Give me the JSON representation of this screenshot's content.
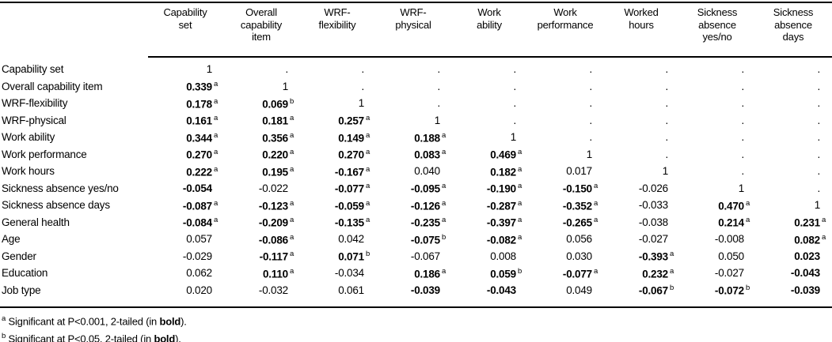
{
  "table": {
    "columns": [
      "Capability\nset",
      "Overall\ncapability\nitem",
      "WRF-\nflexibility",
      "WRF-\nphysical",
      "Work\nability",
      "Work\nperformance",
      "Worked\nhours",
      "Sickness\nabsence\nyes/no",
      "Sickness\nabsence\ndays"
    ],
    "rows": [
      {
        "label": "Capability set",
        "cells": [
          {
            "v": "1"
          },
          {
            "v": "."
          },
          {
            "v": "."
          },
          {
            "v": "."
          },
          {
            "v": "."
          },
          {
            "v": "."
          },
          {
            "v": "."
          },
          {
            "v": "."
          },
          {
            "v": "."
          }
        ]
      },
      {
        "label": "Overall capability item",
        "cells": [
          {
            "v": "0.339",
            "s": "a",
            "b": true
          },
          {
            "v": "1"
          },
          {
            "v": "."
          },
          {
            "v": "."
          },
          {
            "v": "."
          },
          {
            "v": "."
          },
          {
            "v": "."
          },
          {
            "v": "."
          },
          {
            "v": "."
          }
        ]
      },
      {
        "label": "WRF-flexibility",
        "cells": [
          {
            "v": "0.178",
            "s": "a",
            "b": true
          },
          {
            "v": "0.069",
            "s": "b",
            "b": true
          },
          {
            "v": "1"
          },
          {
            "v": "."
          },
          {
            "v": "."
          },
          {
            "v": "."
          },
          {
            "v": "."
          },
          {
            "v": "."
          },
          {
            "v": "."
          }
        ]
      },
      {
        "label": "WRF-physical",
        "cells": [
          {
            "v": "0.161",
            "s": "a",
            "b": true
          },
          {
            "v": "0.181",
            "s": "a",
            "b": true
          },
          {
            "v": "0.257",
            "s": "a",
            "b": true
          },
          {
            "v": "1"
          },
          {
            "v": "."
          },
          {
            "v": "."
          },
          {
            "v": "."
          },
          {
            "v": "."
          },
          {
            "v": "."
          }
        ]
      },
      {
        "label": "Work ability",
        "cells": [
          {
            "v": "0.344",
            "s": "a",
            "b": true
          },
          {
            "v": "0.356",
            "s": "a",
            "b": true
          },
          {
            "v": "0.149",
            "s": "a",
            "b": true
          },
          {
            "v": "0.188",
            "s": "a",
            "b": true
          },
          {
            "v": "1"
          },
          {
            "v": "."
          },
          {
            "v": "."
          },
          {
            "v": "."
          },
          {
            "v": "."
          }
        ]
      },
      {
        "label": "Work performance",
        "cells": [
          {
            "v": "0.270",
            "s": "a",
            "b": true
          },
          {
            "v": "0.220",
            "s": "a",
            "b": true
          },
          {
            "v": "0.270",
            "s": "a",
            "b": true
          },
          {
            "v": "0.083",
            "s": "a",
            "b": true
          },
          {
            "v": "0.469",
            "s": "a",
            "b": true
          },
          {
            "v": "1"
          },
          {
            "v": "."
          },
          {
            "v": "."
          },
          {
            "v": "."
          }
        ]
      },
      {
        "label": "Work hours",
        "cells": [
          {
            "v": "0.222",
            "s": "a",
            "b": true
          },
          {
            "v": "0.195",
            "s": "a",
            "b": true
          },
          {
            "v": "-0.167",
            "s": "a",
            "b": true
          },
          {
            "v": "0.040"
          },
          {
            "v": "0.182",
            "s": "a",
            "b": true
          },
          {
            "v": "0.017"
          },
          {
            "v": "1"
          },
          {
            "v": "."
          },
          {
            "v": "."
          }
        ]
      },
      {
        "label": "Sickness absence yes/no",
        "cells": [
          {
            "v": "-0.054",
            "b": true
          },
          {
            "v": "-0.022"
          },
          {
            "v": "-0.077",
            "s": "a",
            "b": true
          },
          {
            "v": "-0.095",
            "s": "a",
            "b": true
          },
          {
            "v": "-0.190",
            "s": "a",
            "b": true
          },
          {
            "v": "-0.150",
            "s": "a",
            "b": true
          },
          {
            "v": "-0.026"
          },
          {
            "v": "1"
          },
          {
            "v": "."
          }
        ]
      },
      {
        "label": "Sickness absence days",
        "cells": [
          {
            "v": "-0.087",
            "s": "a",
            "b": true
          },
          {
            "v": "-0.123",
            "s": "a",
            "b": true
          },
          {
            "v": "-0.059",
            "s": "a",
            "b": true
          },
          {
            "v": "-0.126",
            "s": "a",
            "b": true
          },
          {
            "v": "-0.287",
            "s": "a",
            "b": true
          },
          {
            "v": "-0.352",
            "s": "a",
            "b": true
          },
          {
            "v": "-0.033"
          },
          {
            "v": "0.470",
            "s": "a",
            "b": true
          },
          {
            "v": "1"
          }
        ]
      },
      {
        "label": "General health",
        "cells": [
          {
            "v": "-0.084",
            "s": "a",
            "b": true
          },
          {
            "v": "-0.209",
            "s": "a",
            "b": true
          },
          {
            "v": "-0.135",
            "s": "a",
            "b": true
          },
          {
            "v": "-0.235",
            "s": "a",
            "b": true
          },
          {
            "v": "-0.397",
            "s": "a",
            "b": true
          },
          {
            "v": "-0.265",
            "s": "a",
            "b": true
          },
          {
            "v": "-0.038"
          },
          {
            "v": "0.214",
            "s": "a",
            "b": true
          },
          {
            "v": "0.231",
            "s": "a",
            "b": true
          }
        ]
      },
      {
        "label": "Age",
        "cells": [
          {
            "v": "0.057"
          },
          {
            "v": "-0.086",
            "s": "a",
            "b": true
          },
          {
            "v": "0.042"
          },
          {
            "v": "-0.075",
            "s": "b",
            "b": true
          },
          {
            "v": "-0.082",
            "s": "a",
            "b": true
          },
          {
            "v": "0.056"
          },
          {
            "v": "-0.027"
          },
          {
            "v": "-0.008"
          },
          {
            "v": "0.082",
            "s": "a",
            "b": true
          }
        ]
      },
      {
        "label": "Gender",
        "cells": [
          {
            "v": "-0.029"
          },
          {
            "v": "-0.117",
            "s": "a",
            "b": true
          },
          {
            "v": "0.071",
            "s": "b",
            "b": true
          },
          {
            "v": "-0.067"
          },
          {
            "v": "0.008"
          },
          {
            "v": "0.030"
          },
          {
            "v": "-0.393",
            "s": "a",
            "b": true
          },
          {
            "v": "0.050"
          },
          {
            "v": "0.023",
            "b": true
          }
        ]
      },
      {
        "label": "Education",
        "cells": [
          {
            "v": "0.062"
          },
          {
            "v": "0.110",
            "s": "a",
            "b": true
          },
          {
            "v": "-0.034"
          },
          {
            "v": "0.186",
            "s": "a",
            "b": true
          },
          {
            "v": "0.059",
            "s": "b",
            "b": true
          },
          {
            "v": "-0.077",
            "s": "a",
            "b": true
          },
          {
            "v": "0.232",
            "s": "a",
            "b": true
          },
          {
            "v": "-0.027"
          },
          {
            "v": "-0.043",
            "b": true
          }
        ]
      },
      {
        "label": "Job type",
        "cells": [
          {
            "v": "0.020"
          },
          {
            "v": "-0.032"
          },
          {
            "v": "0.061"
          },
          {
            "v": "-0.039",
            "b": true
          },
          {
            "v": "-0.043",
            "b": true
          },
          {
            "v": "0.049"
          },
          {
            "v": "-0.067",
            "s": "b",
            "b": true
          },
          {
            "v": "-0.072",
            "s": "b",
            "b": true
          },
          {
            "v": "-0.039",
            "b": true
          }
        ]
      }
    ]
  },
  "footnotes": [
    {
      "sup": "a",
      "pre": " Significant at P<0.001, 2-tailed (in ",
      "bold_word": "bold",
      "post": ")."
    },
    {
      "sup": "b",
      "pre": " Significant at P<0.05, 2-tailed (in ",
      "bold_word": "bold",
      "post": ")."
    }
  ],
  "colors": {
    "text": "#000000",
    "background": "#ffffff",
    "rule": "#000000"
  }
}
